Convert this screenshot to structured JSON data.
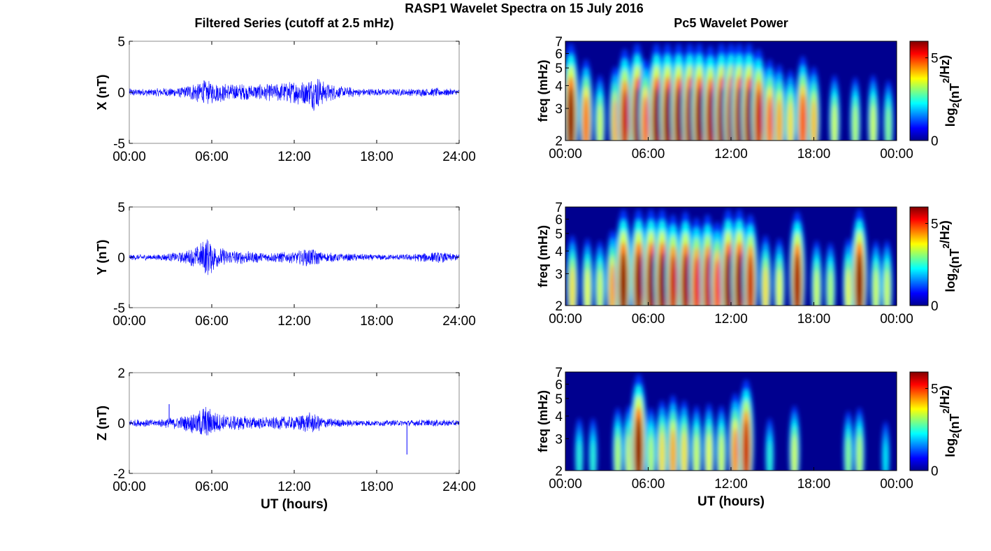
{
  "figure": {
    "title": "RASP1 Wavelet Spectra on 15 July 2016",
    "left_title": "Filtered Series (cutoff at 2.5 mHz)",
    "right_title": "Pc5 Wavelet Power"
  },
  "colors": {
    "trace": "#0000ff",
    "axis": "#000000",
    "frame_grey": "#8c8c8c"
  },
  "chart_data": [
    {
      "type": "line",
      "panel": "X",
      "ylabel": "X (nT)",
      "xlabel": "",
      "ylim": [
        -5,
        5
      ],
      "yticks": [
        "5",
        "0",
        "-5"
      ],
      "xticks": [
        "00:00",
        "06:00",
        "12:00",
        "18:00",
        "24:00"
      ],
      "xlim_hours": [
        0,
        24
      ],
      "envelope": {
        "x_hours": [
          0,
          2,
          4,
          4.8,
          5.5,
          6.5,
          7.5,
          9,
          10.5,
          12,
          13,
          13.6,
          14.2,
          15.5,
          17,
          19,
          21,
          22.5,
          24
        ],
        "amplitude_nT": [
          0.4,
          0.4,
          0.6,
          1.0,
          1.3,
          1.0,
          0.9,
          0.8,
          0.9,
          1.2,
          1.4,
          2.0,
          1.0,
          0.6,
          0.4,
          0.35,
          0.4,
          0.45,
          0.3
        ]
      }
    },
    {
      "type": "line",
      "panel": "Y",
      "ylabel": "Y (nT)",
      "xlabel": "",
      "ylim": [
        -5,
        5
      ],
      "yticks": [
        "5",
        "0",
        "-5"
      ],
      "xticks": [
        "00:00",
        "06:00",
        "12:00",
        "18:00",
        "24:00"
      ],
      "xlim_hours": [
        0,
        24
      ],
      "envelope": {
        "x_hours": [
          0,
          2,
          4,
          5,
          5.6,
          6.5,
          8,
          10,
          12,
          13.3,
          14,
          16,
          18,
          20,
          21.5,
          22.5,
          24
        ],
        "amplitude_nT": [
          0.3,
          0.3,
          0.6,
          1.2,
          2.1,
          1.0,
          0.7,
          0.5,
          0.6,
          1.1,
          0.5,
          0.4,
          0.3,
          0.3,
          0.5,
          0.6,
          0.3
        ]
      }
    },
    {
      "type": "line",
      "panel": "Z",
      "ylabel": "Z (nT)",
      "xlabel": "UT (hours)",
      "ylim": [
        -2,
        2
      ],
      "yticks": [
        "2",
        "0",
        "-2"
      ],
      "xticks": [
        "00:00",
        "06:00",
        "12:00",
        "18:00",
        "24:00"
      ],
      "xlim_hours": [
        0,
        24
      ],
      "envelope": {
        "x_hours": [
          0,
          2,
          4,
          5,
          5.5,
          6.5,
          8,
          10,
          12,
          13.3,
          14.5,
          16,
          18,
          20,
          22,
          24
        ],
        "amplitude_nT": [
          0.15,
          0.15,
          0.3,
          0.5,
          0.75,
          0.4,
          0.3,
          0.25,
          0.3,
          0.45,
          0.2,
          0.15,
          0.12,
          0.12,
          0.15,
          0.12
        ]
      },
      "spikes": [
        {
          "x_hours": 2.9,
          "value_nT": 0.75
        },
        {
          "x_hours": 20.2,
          "value_nT": -1.25
        }
      ]
    },
    {
      "type": "heatmap",
      "panel": "X",
      "ylabel": "freq (mHz)",
      "xlabel": "",
      "xticks": [
        "00:00",
        "06:00",
        "12:00",
        "18:00",
        "00:00"
      ],
      "yticks": [
        "2",
        "3",
        "4",
        "5",
        "6",
        "7"
      ],
      "ylim_mHz": [
        2,
        7
      ],
      "log_y": true,
      "colorbar_ticks": [
        "0",
        "5"
      ],
      "colorbar_label": "log2(nT^2/Hz)",
      "clim": [
        0,
        6
      ],
      "bursts": [
        [
          0.4,
          7.0
        ],
        [
          1.5,
          4.5
        ],
        [
          2.5,
          3.0
        ],
        [
          3.6,
          3.8
        ],
        [
          4.3,
          5.5
        ],
        [
          5.2,
          6.2
        ],
        [
          5.8,
          4.5
        ],
        [
          6.6,
          6.5
        ],
        [
          7.4,
          7.8
        ],
        [
          8.2,
          6.5
        ],
        [
          9.0,
          7.0
        ],
        [
          9.7,
          6.2
        ],
        [
          10.5,
          5.8
        ],
        [
          11.3,
          6.5
        ],
        [
          12.0,
          7.2
        ],
        [
          12.6,
          8.0
        ],
        [
          13.3,
          7.2
        ],
        [
          14.0,
          5.5
        ],
        [
          14.8,
          4.5
        ],
        [
          15.5,
          4.0
        ],
        [
          16.3,
          3.5
        ],
        [
          17.2,
          4.8
        ],
        [
          18.0,
          3.8
        ],
        [
          19.5,
          3.0
        ],
        [
          21.0,
          2.8
        ],
        [
          22.3,
          3.0
        ],
        [
          23.4,
          2.5
        ]
      ]
    },
    {
      "type": "heatmap",
      "panel": "Y",
      "ylabel": "freq (mHz)",
      "xlabel": "",
      "xticks": [
        "00:00",
        "06:00",
        "12:00",
        "18:00",
        "00:00"
      ],
      "yticks": [
        "2",
        "3",
        "4",
        "5",
        "6",
        "7"
      ],
      "ylim_mHz": [
        2,
        7
      ],
      "log_y": true,
      "colorbar_ticks": [
        "0",
        "5"
      ],
      "colorbar_label": "log2(nT^2/Hz)",
      "clim": [
        0,
        6
      ],
      "bursts": [
        [
          0.5,
          3.5
        ],
        [
          1.6,
          3.2
        ],
        [
          2.5,
          3.0
        ],
        [
          3.4,
          4.0
        ],
        [
          4.2,
          6.5
        ],
        [
          5.3,
          8.0
        ],
        [
          6.2,
          6.5
        ],
        [
          7.0,
          6.0
        ],
        [
          7.8,
          5.5
        ],
        [
          8.7,
          5.8
        ],
        [
          9.5,
          5.2
        ],
        [
          10.3,
          5.5
        ],
        [
          11.0,
          4.8
        ],
        [
          11.8,
          6.2
        ],
        [
          12.6,
          6.8
        ],
        [
          13.4,
          5.5
        ],
        [
          14.5,
          3.5
        ],
        [
          15.5,
          3.2
        ],
        [
          16.8,
          5.8
        ],
        [
          18.2,
          3.0
        ],
        [
          19.2,
          2.8
        ],
        [
          20.5,
          3.2
        ],
        [
          21.3,
          6.8
        ],
        [
          22.5,
          3.0
        ],
        [
          23.3,
          3.0
        ]
      ]
    },
    {
      "type": "heatmap",
      "panel": "Z",
      "ylabel": "freq (mHz)",
      "xlabel": "UT (hours)",
      "xticks": [
        "00:00",
        "06:00",
        "12:00",
        "18:00",
        "00:00"
      ],
      "yticks": [
        "2",
        "3",
        "4",
        "5",
        "6",
        "7"
      ],
      "ylim_mHz": [
        2,
        7
      ],
      "log_y": true,
      "colorbar_ticks": [
        "0",
        "5"
      ],
      "colorbar_label": "log2(nT^2/Hz)",
      "clim": [
        0,
        6
      ],
      "bursts": [
        [
          1.0,
          1.8
        ],
        [
          2.0,
          1.8
        ],
        [
          3.8,
          2.8
        ],
        [
          4.6,
          3.0
        ],
        [
          5.3,
          6.0
        ],
        [
          6.2,
          2.8
        ],
        [
          7.0,
          3.5
        ],
        [
          7.8,
          4.0
        ],
        [
          8.6,
          3.5
        ],
        [
          9.5,
          3.0
        ],
        [
          10.4,
          3.2
        ],
        [
          11.3,
          3.0
        ],
        [
          12.3,
          4.2
        ],
        [
          13.1,
          5.5
        ],
        [
          14.8,
          1.8
        ],
        [
          16.6,
          3.0
        ],
        [
          20.5,
          2.5
        ],
        [
          21.3,
          2.8
        ],
        [
          23.2,
          1.5
        ]
      ]
    }
  ]
}
